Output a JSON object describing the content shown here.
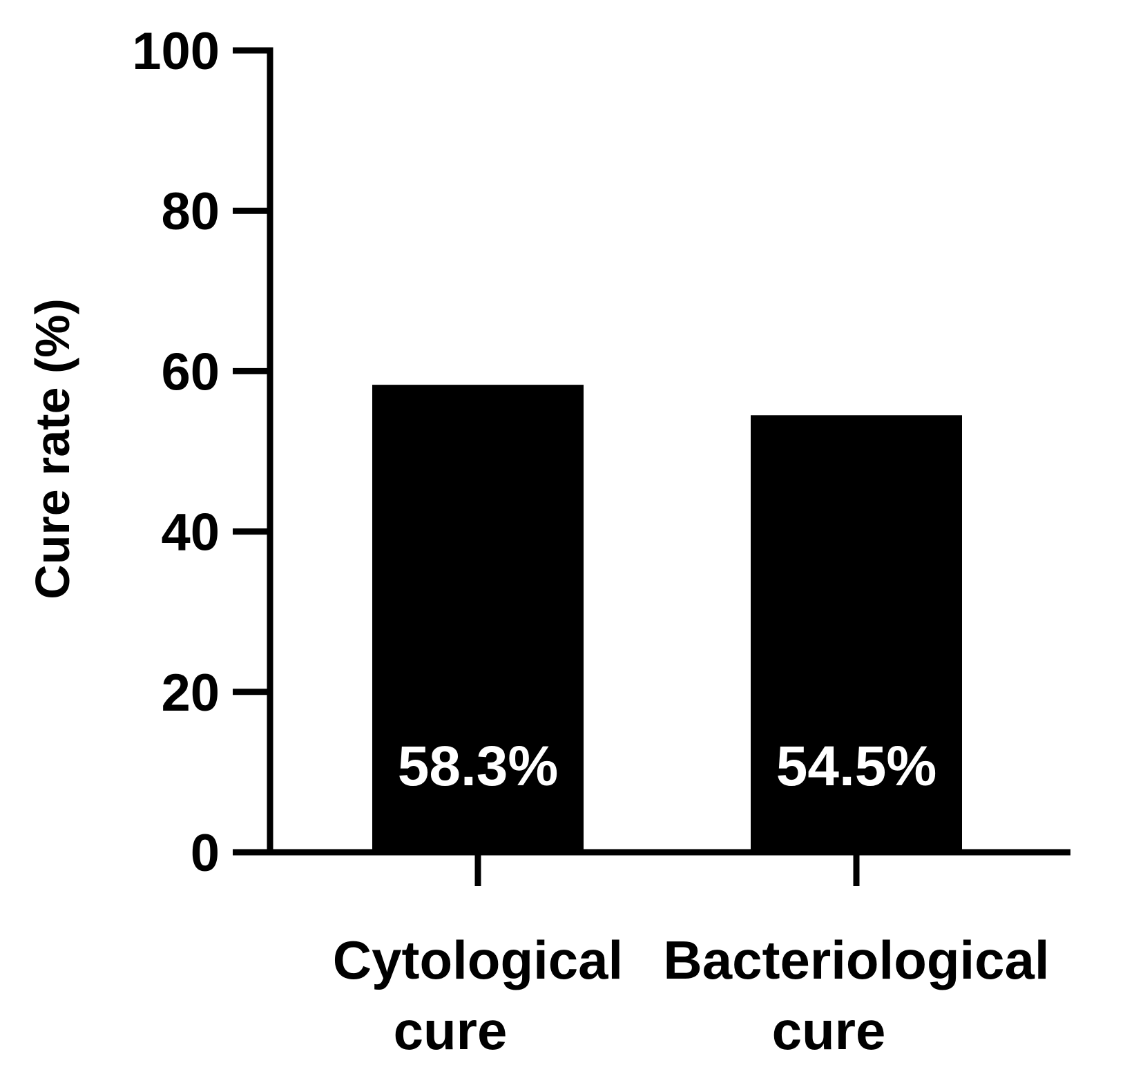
{
  "chart_data": {
    "type": "bar",
    "categories": [
      [
        "Cytological",
        "cure"
      ],
      [
        "Bacteriological",
        "cure"
      ]
    ],
    "values": [
      58.3,
      54.5
    ],
    "data_labels": [
      "58.3%",
      "54.5%"
    ],
    "ylabel": "Cure rate (%)",
    "xlabel": "",
    "title": "",
    "ylim": [
      0,
      100
    ],
    "yticks": [
      0,
      20,
      40,
      60,
      80,
      100
    ],
    "ytick_labels": [
      "0",
      "20",
      "40",
      "60",
      "80",
      "100"
    ],
    "grid": false,
    "legend": "none",
    "colors": {
      "bar": "#000000",
      "axis": "#000000",
      "data_label": "#ffffff",
      "text": "#000000",
      "background": "#ffffff"
    }
  }
}
